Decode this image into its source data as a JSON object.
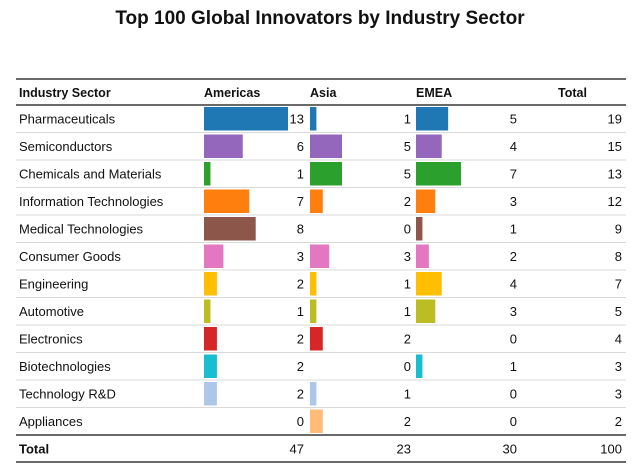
{
  "title": "Top 100 Global Innovators by Industry Sector",
  "chart_data": {
    "type": "table",
    "title": "Top 100 Global Innovators by Industry Sector",
    "columns": [
      "Industry Sector",
      "Americas",
      "Asia",
      "EMEA",
      "Total"
    ],
    "rows": [
      {
        "sector": "Pharmaceuticals",
        "americas": 13,
        "asia": 1,
        "emea": 5,
        "total": 19,
        "color": "#1f77b4"
      },
      {
        "sector": "Semiconductors",
        "americas": 6,
        "asia": 5,
        "emea": 4,
        "total": 15,
        "color": "#9467bd"
      },
      {
        "sector": "Chemicals and Materials",
        "americas": 1,
        "asia": 5,
        "emea": 7,
        "total": 13,
        "color": "#2ca02c"
      },
      {
        "sector": "Information Technologies",
        "americas": 7,
        "asia": 2,
        "emea": 3,
        "total": 12,
        "color": "#ff7f0e"
      },
      {
        "sector": "Medical Technologies",
        "americas": 8,
        "asia": 0,
        "emea": 1,
        "total": 9,
        "color": "#8c564b"
      },
      {
        "sector": "Consumer Goods",
        "americas": 3,
        "asia": 3,
        "emea": 2,
        "total": 8,
        "color": "#e377c2"
      },
      {
        "sector": "Engineering",
        "americas": 2,
        "asia": 1,
        "emea": 4,
        "total": 7,
        "color": "#ffbf00"
      },
      {
        "sector": "Automotive",
        "americas": 1,
        "asia": 1,
        "emea": 3,
        "total": 5,
        "color": "#bcbd22"
      },
      {
        "sector": "Electronics",
        "americas": 2,
        "asia": 2,
        "emea": 0,
        "total": 4,
        "color": "#d62728"
      },
      {
        "sector": "Biotechnologies",
        "americas": 2,
        "asia": 0,
        "emea": 1,
        "total": 3,
        "color": "#17becf"
      },
      {
        "sector": "Technology R&D",
        "americas": 2,
        "asia": 1,
        "emea": 0,
        "total": 3,
        "color": "#aec7e8"
      },
      {
        "sector": "Appliances",
        "americas": 0,
        "asia": 2,
        "emea": 0,
        "total": 2,
        "color": "#ffbb78"
      }
    ],
    "totals": {
      "label": "Total",
      "americas": 47,
      "asia": 23,
      "emea": 30,
      "total": 100
    }
  }
}
